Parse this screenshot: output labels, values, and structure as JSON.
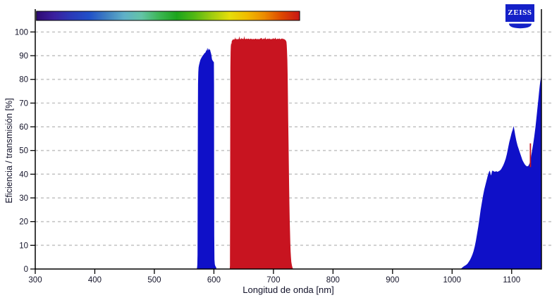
{
  "brand": {
    "logo_text": "ZEISS",
    "logo_color": "#1420c8"
  },
  "chart_data": {
    "type": "area",
    "title": "",
    "xlabel": "Longitud de onda [nm]",
    "ylabel": "Eficiencia / transmisión [%]",
    "xlim": [
      300,
      1150
    ],
    "ylim": [
      0,
      100
    ],
    "x_ticks": [
      300,
      400,
      500,
      600,
      700,
      800,
      900,
      1000,
      1100
    ],
    "y_ticks": [
      0,
      10,
      20,
      30,
      40,
      50,
      60,
      70,
      80,
      90,
      100
    ],
    "grid": "horizontal-dashed",
    "grid_color": "#c6c6c6",
    "axis_color": "#000000",
    "tick_label_color": "#14142a",
    "spectrum_bar": {
      "x_range_nm": [
        302,
        744
      ],
      "gradient": [
        "#2e0a72",
        "#3a1f9e",
        "#2a3ab8",
        "#2050c8",
        "#3f7fc2",
        "#5fb0c8",
        "#63c4a6",
        "#3cb654",
        "#1ca41c",
        "#52b814",
        "#a0cc10",
        "#e6de0a",
        "#f0bc00",
        "#ec8a00",
        "#dd4600",
        "#c81616"
      ]
    },
    "series": [
      {
        "name": "band-blue-590nm",
        "color": "#0f10c8",
        "points": [
          [
            571.3,
            0
          ],
          [
            571.8,
            0.7
          ],
          [
            572.2,
            1.8
          ],
          [
            572.5,
            6
          ],
          [
            572.8,
            35
          ],
          [
            573.1,
            65
          ],
          [
            573.4,
            78
          ],
          [
            573.8,
            83
          ],
          [
            574.3,
            85
          ],
          [
            575,
            86
          ],
          [
            576,
            87
          ],
          [
            577,
            88
          ],
          [
            578,
            88.6
          ],
          [
            579.5,
            89.3
          ],
          [
            581,
            90
          ],
          [
            582.5,
            90.4
          ],
          [
            584,
            91
          ],
          [
            585.5,
            91.3
          ],
          [
            586.5,
            91.7
          ],
          [
            587.3,
            92.4
          ],
          [
            588,
            92
          ],
          [
            588.6,
            92.9
          ],
          [
            589.2,
            93.3
          ],
          [
            589.8,
            92.5
          ],
          [
            590.4,
            92.2
          ],
          [
            591,
            93
          ],
          [
            591.6,
            92.5
          ],
          [
            592.2,
            93
          ],
          [
            592.8,
            92.3
          ],
          [
            593.5,
            92.7
          ],
          [
            594.2,
            91.8
          ],
          [
            595,
            91.1
          ],
          [
            595.7,
            90.4
          ],
          [
            596.3,
            89.3
          ],
          [
            596.8,
            88.5
          ],
          [
            597.5,
            88.1
          ],
          [
            598.3,
            87.8
          ],
          [
            599.2,
            87.5
          ],
          [
            600,
            87.2
          ],
          [
            600.2,
            78
          ],
          [
            600.4,
            45
          ],
          [
            600.6,
            14
          ],
          [
            600.9,
            4
          ],
          [
            601.5,
            2
          ],
          [
            602.5,
            1.2
          ],
          [
            603.6,
            0.8
          ],
          [
            604.2,
            0
          ]
        ]
      },
      {
        "name": "band-red-630-730nm",
        "color": "#c81420",
        "points": [
          [
            626.6,
            0
          ],
          [
            627,
            1.5
          ],
          [
            627.2,
            25
          ],
          [
            627.4,
            60
          ],
          [
            627.7,
            85
          ],
          [
            628,
            91.5
          ],
          [
            628.4,
            94
          ],
          [
            629,
            95.3
          ],
          [
            629.5,
            94.8
          ],
          [
            630,
            96.2
          ],
          [
            631,
            96.5
          ],
          [
            632,
            96.9
          ],
          [
            633,
            96.7
          ],
          [
            634,
            97.1
          ],
          [
            635,
            96.8
          ],
          [
            636,
            97.8
          ],
          [
            636.5,
            97
          ],
          [
            637.5,
            97.2
          ],
          [
            638.5,
            96.8
          ],
          [
            640,
            97.1
          ],
          [
            641.5,
            96.9
          ],
          [
            643,
            98.2
          ],
          [
            643.6,
            97.1
          ],
          [
            645,
            96.9
          ],
          [
            646,
            97.5
          ],
          [
            647,
            97
          ],
          [
            648.5,
            97.2
          ],
          [
            650,
            96.9
          ],
          [
            651,
            98.3
          ],
          [
            651.7,
            97.2
          ],
          [
            653,
            96.9
          ],
          [
            654.5,
            97.2
          ],
          [
            656,
            97
          ],
          [
            658,
            97.2
          ],
          [
            660,
            96.9
          ],
          [
            662,
            97.2
          ],
          [
            664,
            96.9
          ],
          [
            666,
            97.1
          ],
          [
            668,
            96.9
          ],
          [
            670,
            97.2
          ],
          [
            672,
            96.9
          ],
          [
            674,
            97.1
          ],
          [
            676,
            96.9
          ],
          [
            678,
            97.2
          ],
          [
            680,
            97.5
          ],
          [
            680.7,
            97.1
          ],
          [
            682,
            96.9
          ],
          [
            683,
            97.3
          ],
          [
            684,
            97
          ],
          [
            685.5,
            97.2
          ],
          [
            686.3,
            97.9
          ],
          [
            687,
            97.1
          ],
          [
            688.5,
            96.9
          ],
          [
            690,
            97.2
          ],
          [
            691.5,
            97
          ],
          [
            693,
            97.3
          ],
          [
            694.5,
            96.9
          ],
          [
            696,
            97.1
          ],
          [
            697.5,
            96.9
          ],
          [
            699,
            97.2
          ],
          [
            700,
            97.4
          ],
          [
            701,
            97
          ],
          [
            702.5,
            97.2
          ],
          [
            703.2,
            97.7
          ],
          [
            704,
            97.1
          ],
          [
            705.5,
            96.9
          ],
          [
            707,
            97.2
          ],
          [
            708.5,
            97
          ],
          [
            710,
            97.3
          ],
          [
            711.5,
            96.9
          ],
          [
            713,
            97.1
          ],
          [
            714.5,
            97.3
          ],
          [
            716,
            97
          ],
          [
            717.5,
            97.1
          ],
          [
            719,
            96.8
          ],
          [
            720,
            96.6
          ],
          [
            721,
            96.3
          ],
          [
            721.8,
            95.8
          ],
          [
            722.3,
            94.5
          ],
          [
            722.8,
            92
          ],
          [
            723.3,
            88
          ],
          [
            723.8,
            82
          ],
          [
            724.3,
            73
          ],
          [
            724.8,
            63
          ],
          [
            725.3,
            53
          ],
          [
            725.8,
            44
          ],
          [
            726.3,
            35
          ],
          [
            726.8,
            27.5
          ],
          [
            727.3,
            21
          ],
          [
            727.8,
            15.5
          ],
          [
            728.3,
            11
          ],
          [
            728.8,
            7.5
          ],
          [
            729.4,
            5
          ],
          [
            730,
            3
          ],
          [
            731,
            1.5
          ],
          [
            732,
            0.6
          ],
          [
            733,
            0
          ]
        ]
      },
      {
        "name": "band-ir-1020-1150nm",
        "color": "#0f10c8",
        "points": [
          [
            1014,
            0
          ],
          [
            1016,
            0.4
          ],
          [
            1018,
            0.8
          ],
          [
            1020,
            1.2
          ],
          [
            1022,
            1.5
          ],
          [
            1024,
            1.8
          ],
          [
            1026,
            2.3
          ],
          [
            1028,
            3
          ],
          [
            1030,
            3.8
          ],
          [
            1032,
            4.8
          ],
          [
            1034,
            6
          ],
          [
            1036,
            7.5
          ],
          [
            1038,
            9.5
          ],
          [
            1040,
            12
          ],
          [
            1042,
            15
          ],
          [
            1044,
            18
          ],
          [
            1046,
            21.5
          ],
          [
            1048,
            25
          ],
          [
            1050,
            28
          ],
          [
            1052,
            31
          ],
          [
            1054,
            33.5
          ],
          [
            1056,
            35.5
          ],
          [
            1058,
            37.5
          ],
          [
            1060,
            39.5
          ],
          [
            1062,
            41
          ],
          [
            1063,
            41.5
          ],
          [
            1064,
            40.8
          ],
          [
            1065,
            39.5
          ],
          [
            1066,
            40
          ],
          [
            1067,
            41.2
          ],
          [
            1068,
            41.5
          ],
          [
            1070,
            41.2
          ],
          [
            1072,
            41
          ],
          [
            1074,
            41.3
          ],
          [
            1076,
            41
          ],
          [
            1078,
            41.2
          ],
          [
            1080,
            41.5
          ],
          [
            1082,
            42
          ],
          [
            1084,
            42.8
          ],
          [
            1086,
            43.8
          ],
          [
            1088,
            45
          ],
          [
            1090,
            46.5
          ],
          [
            1092,
            48.5
          ],
          [
            1094,
            51
          ],
          [
            1096,
            53.5
          ],
          [
            1098,
            55.5
          ],
          [
            1100,
            57.5
          ],
          [
            1102,
            59
          ],
          [
            1103,
            60.3
          ],
          [
            1104,
            59.5
          ],
          [
            1105,
            58
          ],
          [
            1106,
            56.5
          ],
          [
            1108,
            54
          ],
          [
            1110,
            52
          ],
          [
            1112,
            50.5
          ],
          [
            1114,
            49
          ],
          [
            1116,
            47.5
          ],
          [
            1118,
            46
          ],
          [
            1120,
            45
          ],
          [
            1122,
            44.2
          ],
          [
            1124,
            43.6
          ],
          [
            1126,
            43.3
          ],
          [
            1128,
            43.5
          ],
          [
            1130,
            44.5
          ],
          [
            1132,
            46.5
          ],
          [
            1134,
            49.5
          ],
          [
            1136,
            52.5
          ],
          [
            1138,
            56
          ],
          [
            1140,
            60
          ],
          [
            1142,
            64.5
          ],
          [
            1144,
            69.5
          ],
          [
            1145,
            72
          ],
          [
            1146,
            74.5
          ],
          [
            1147,
            77
          ],
          [
            1148,
            79
          ],
          [
            1149,
            80.5
          ],
          [
            1150,
            82
          ]
        ]
      }
    ],
    "markers": [
      {
        "name": "laser-line-1131nm",
        "color": "#c81420",
        "x": 1131.5,
        "y": [
          43,
          53
        ]
      }
    ]
  }
}
